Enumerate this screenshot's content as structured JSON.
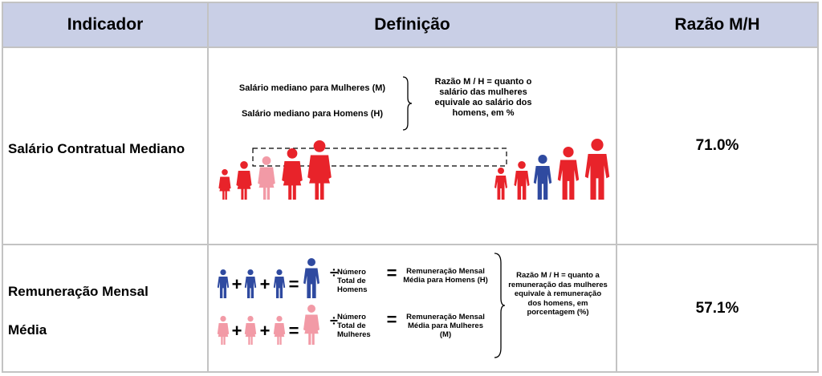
{
  "headers": [
    "Indicador",
    "Definição",
    "Razão M/H"
  ],
  "rows": [
    {
      "indicator": "Salário Contratual Mediano",
      "value": "71.0%",
      "definition": {
        "women_label": "Salário mediano para Mulheres (M)",
        "men_label": "Salário mediano para Homens (H)",
        "explanation": "Razão M / H = quanto o salário das mulheres equivale ao salário dos homens, em %"
      }
    },
    {
      "indicator_line1": "Remuneração Mensal",
      "indicator_line2": "Média",
      "value": "57.1%",
      "definition": {
        "men_count": "Número Total de Homens",
        "men_result": "Remuneração Mensal Média para Homens (H)",
        "women_count": "Número Total de Mulheres",
        "women_result": "Remuneração Mensal Média para Mulheres (M)",
        "explanation": "Razão M / H = quanto a remuneração das mulheres equivale à remuneração dos homens, em porcentagem (%)"
      }
    }
  ],
  "colors": {
    "header_bg": "#c9cfe6",
    "red": "#e8232a",
    "pink": "#f29aa6",
    "blue": "#2f4aa0",
    "border": "#c3c3c3"
  },
  "icons": [
    "person-icon",
    "plus-sign",
    "equals-sign",
    "divide-sign",
    "curly-brace"
  ]
}
